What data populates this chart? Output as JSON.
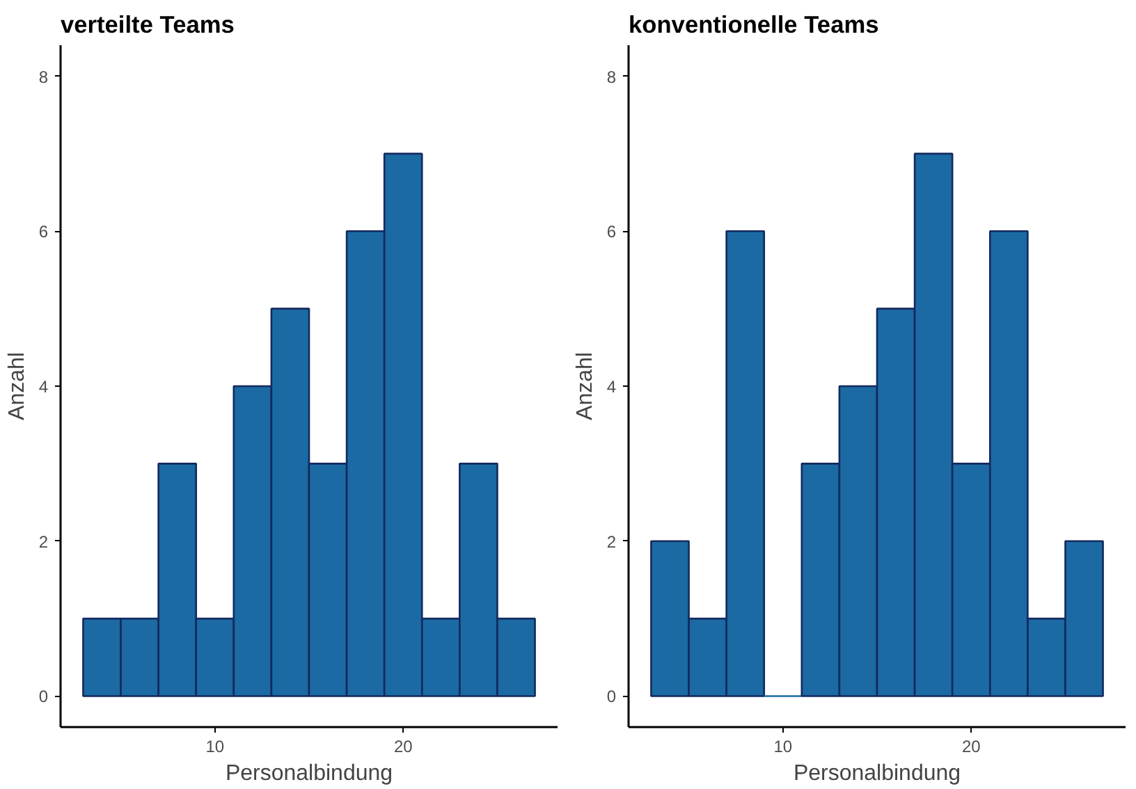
{
  "chart_data": [
    {
      "type": "histogram",
      "title": "verteilte Teams",
      "xlabel": "Personalbindung",
      "ylabel": "Anzahl",
      "bins": [
        3,
        5,
        7,
        9,
        11,
        13,
        15,
        17,
        19,
        21,
        23,
        25,
        27
      ],
      "values": [
        1,
        1,
        3,
        1,
        4,
        5,
        3,
        6,
        7,
        1,
        3,
        1
      ],
      "color": "#1b6aa3",
      "xlim": [
        1.8,
        28.2
      ],
      "xticks": [
        10,
        20
      ],
      "ylim": [
        -0.4,
        8.4
      ],
      "yticks": [
        0,
        2,
        4,
        6,
        8
      ],
      "grid": false
    },
    {
      "type": "histogram",
      "title": "konventionelle Teams",
      "xlabel": "Personalbindung",
      "ylabel": "Anzahl",
      "bins": [
        3,
        5,
        7,
        9,
        11,
        13,
        15,
        17,
        19,
        21,
        23,
        25,
        27
      ],
      "values": [
        2,
        1,
        6,
        0,
        3,
        4,
        5,
        7,
        3,
        6,
        1,
        2
      ],
      "color": "#1b6aa3",
      "xlim": [
        1.8,
        28.2
      ],
      "xticks": [
        10,
        20
      ],
      "ylim": [
        -0.4,
        8.4
      ],
      "yticks": [
        0,
        2,
        4,
        6,
        8
      ],
      "grid": false
    }
  ]
}
